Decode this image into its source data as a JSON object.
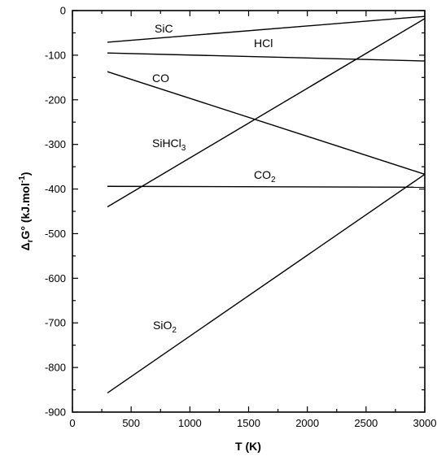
{
  "chart_data": {
    "type": "line",
    "title": "",
    "xlabel": "T (K)",
    "ylabel": "ΔrG° (kJ.mol-1)",
    "xlim": [
      0,
      3000
    ],
    "ylim": [
      -900,
      0
    ],
    "x_ticks": [
      0,
      500,
      1000,
      1500,
      2000,
      2500,
      3000
    ],
    "y_ticks": [
      0,
      -100,
      -200,
      -300,
      -400,
      -500,
      -600,
      -700,
      -800,
      -900
    ],
    "grid": false,
    "series": [
      {
        "name": "SiC",
        "label_parts": [
          [
            "SiC",
            ""
          ]
        ],
        "x": [
          298,
          3000
        ],
        "y": [
          -71,
          -13
        ]
      },
      {
        "name": "HCl",
        "label_parts": [
          [
            "HCl",
            ""
          ]
        ],
        "x": [
          298,
          3000
        ],
        "y": [
          -95,
          -113
        ]
      },
      {
        "name": "CO",
        "label_parts": [
          [
            "CO",
            ""
          ]
        ],
        "x": [
          298,
          3000
        ],
        "y": [
          -137,
          -367
        ]
      },
      {
        "name": "SiHCl3",
        "label_parts": [
          [
            "SiHCl",
            ""
          ],
          [
            "3",
            "sub"
          ]
        ],
        "x": [
          298,
          3000
        ],
        "y": [
          -440,
          -18
        ]
      },
      {
        "name": "CO2",
        "label_parts": [
          [
            "CO",
            ""
          ],
          [
            "2",
            "sub"
          ]
        ],
        "x": [
          298,
          3000
        ],
        "y": [
          -394,
          -396
        ]
      },
      {
        "name": "SiO2",
        "label_parts": [
          [
            "SiO",
            ""
          ],
          [
            "2",
            "sub"
          ]
        ],
        "x": [
          298,
          3000
        ],
        "y": [
          -857,
          -367
        ]
      }
    ]
  }
}
